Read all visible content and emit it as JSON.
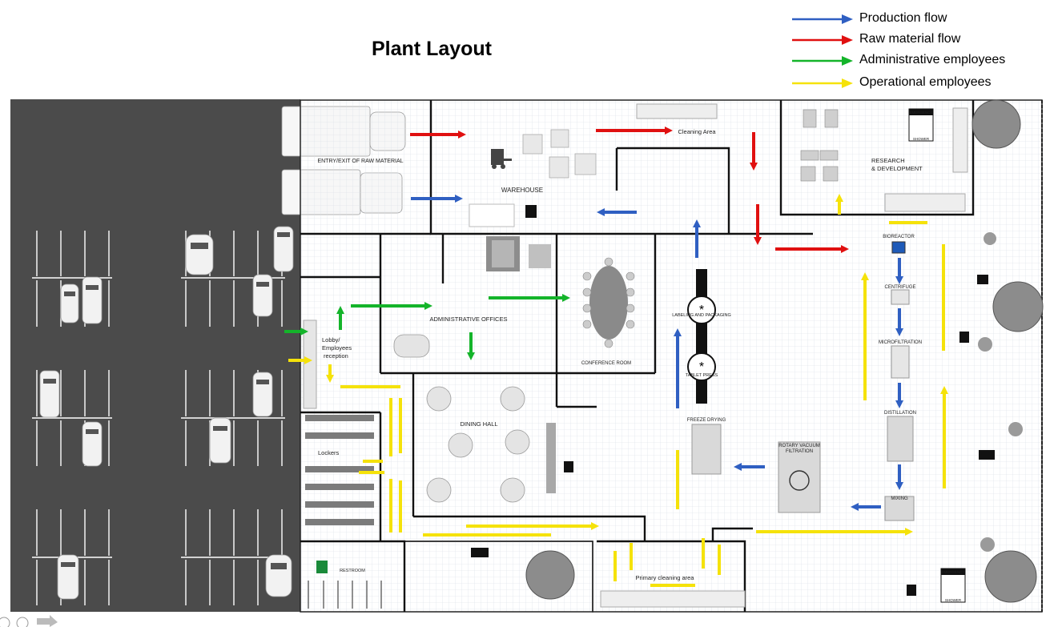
{
  "title": "Plant Layout",
  "legend": [
    {
      "label": "Production flow",
      "color": "#2f5fc2"
    },
    {
      "label": "Raw material flow",
      "color": "#e01010"
    },
    {
      "label": "Administrative employees",
      "color": "#14b42a"
    },
    {
      "label": "Operational employees",
      "color": "#f5e20a"
    }
  ],
  "areas": {
    "entry_exit": "ENTRY/EXIT OF RAW MATERIAL",
    "warehouse": "WAREHOUSE",
    "cleaning_area": "Cleaning Area",
    "research_line1": "RESEARCH",
    "research_line2": "& DEVELOPMENT",
    "bioreactor": "BIOREACTOR",
    "centrifuge": "CENTRIFUGE",
    "microfiltration": "MICROFILTRATION",
    "distillation": "DISTILLATION",
    "mixing": "MIXING",
    "rotary_line1": "ROTARY VACUUM",
    "rotary_line2": "FILTRATION",
    "freeze_drying": "FREEZE DRYING",
    "tablet_press": "TABLET PRESS",
    "labeling": "LABELING AND PACKAGING",
    "conference_room": "CONFERENCE ROOM",
    "admin_offices": "ADMINISTRATIVE OFFICES",
    "lobby_line1": "Lobby/",
    "lobby_line2": "Employees",
    "lobby_line3": "reception",
    "dining_hall": "DINING HALL",
    "lockers": "Lockers",
    "restroom": "RESTROOM",
    "primary_cleaning": "Primary cleaning area",
    "emergency_top": "EMERGENCY",
    "shower": "SHOWER"
  },
  "icons": [
    "truck-icon",
    "car-icon",
    "forklift-icon",
    "box-icon",
    "tree-icon",
    "table-icon",
    "chair-icon",
    "emergency-shower-icon",
    "fire-extinguisher-icon",
    "exit-sign-icon"
  ]
}
